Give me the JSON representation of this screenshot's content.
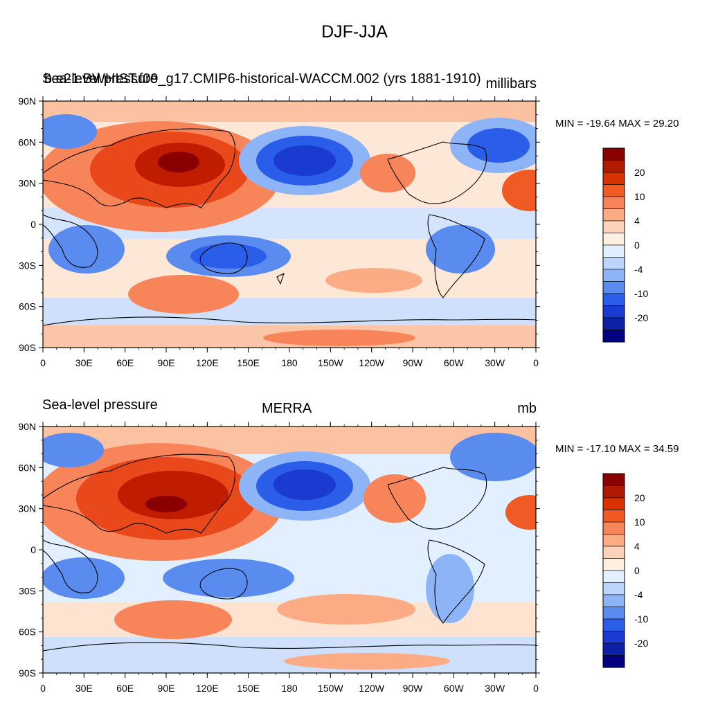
{
  "title": "DJF-JJA",
  "panels": [
    {
      "left_title_overprint": "Sea-level pressure",
      "center_title": "b.e21.BWHIST.f09_g17.CMIP6-historical-WACCM.002 (yrs 1881-1910)",
      "units": "millibars",
      "stats": "MIN = -19.64 MAX =  29.20"
    },
    {
      "left_title": "Sea-level pressure",
      "center_title": "MERRA",
      "units": "mb",
      "stats": "MIN = -17.10 MAX =  34.59"
    }
  ],
  "lat_labels": [
    "90N",
    "60N",
    "30N",
    "0",
    "30S",
    "60S",
    "90S"
  ],
  "lon_labels": [
    "0",
    "30E",
    "60E",
    "90E",
    "120E",
    "150E",
    "180",
    "150W",
    "120W",
    "90W",
    "60W",
    "30W",
    "0"
  ],
  "colorbar": {
    "labels": [
      "20",
      "10",
      "4",
      "0",
      "-4",
      "-10",
      "-20"
    ],
    "colors": [
      "#8a0000",
      "#b01a00",
      "#d83200",
      "#f05a25",
      "#f8845a",
      "#fbac85",
      "#fdd2b8",
      "#fff0e2",
      "#e2efff",
      "#bcd5fc",
      "#8eb4f8",
      "#5a8cf0",
      "#2a5ee8",
      "#1a3ad0",
      "#0c20a8",
      "#000080"
    ]
  }
}
